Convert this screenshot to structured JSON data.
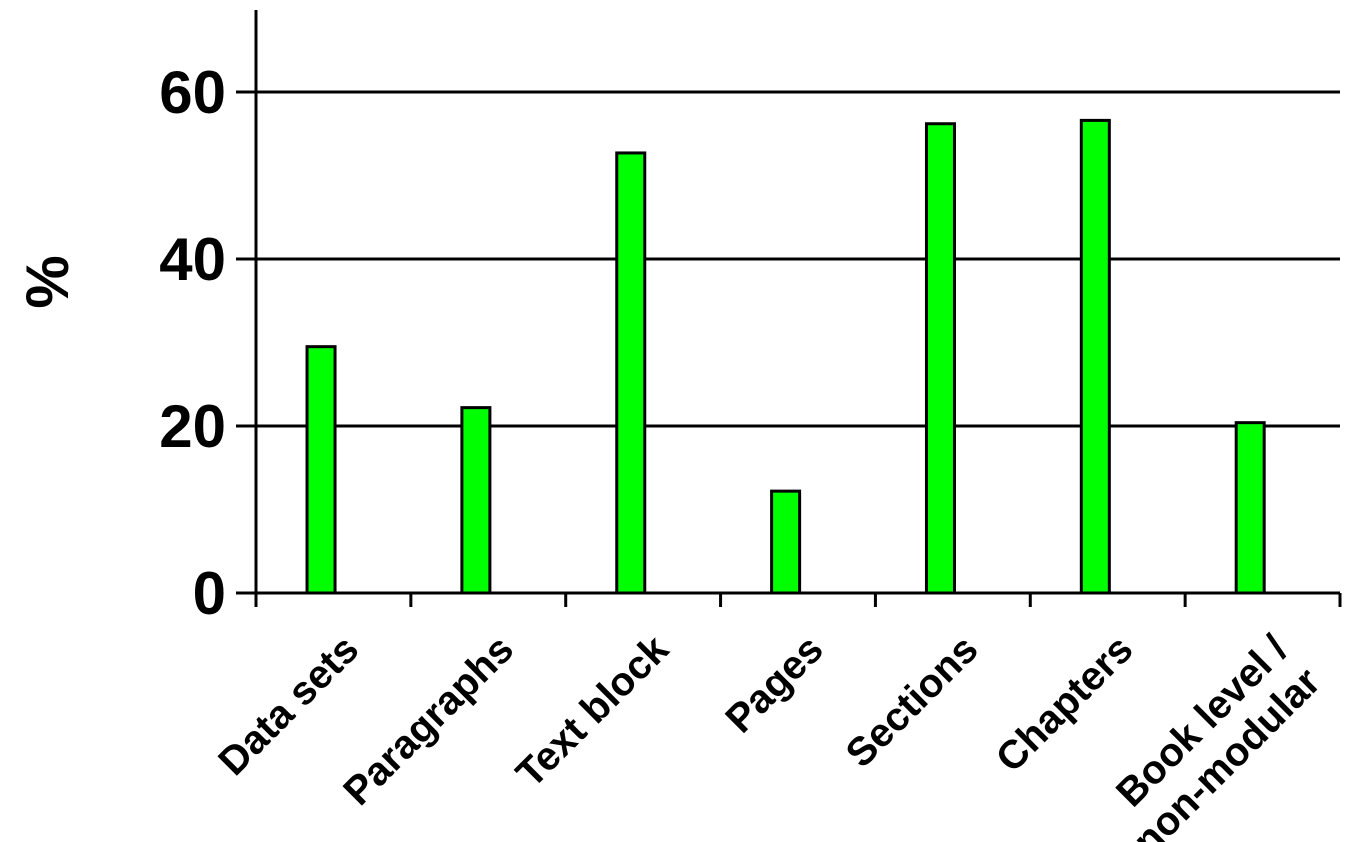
{
  "chart_data": {
    "type": "bar",
    "title": "",
    "xlabel": "",
    "ylabel": "%",
    "ylim": [
      0,
      70
    ],
    "yticks": [
      0,
      20,
      40,
      60
    ],
    "grid": "horizontal",
    "categories": [
      [
        "Data sets"
      ],
      [
        "Paragraphs"
      ],
      [
        "Text block"
      ],
      [
        "Pages"
      ],
      [
        "Sections"
      ],
      [
        "Chapters"
      ],
      [
        "Book level /",
        "non-modular"
      ]
    ],
    "values": [
      29.5,
      22.2,
      52.7,
      12.2,
      56.2,
      56.6,
      20.4
    ],
    "colors": {
      "bar": "#00ff00",
      "outline": "#000000",
      "grid": "#000000"
    }
  }
}
